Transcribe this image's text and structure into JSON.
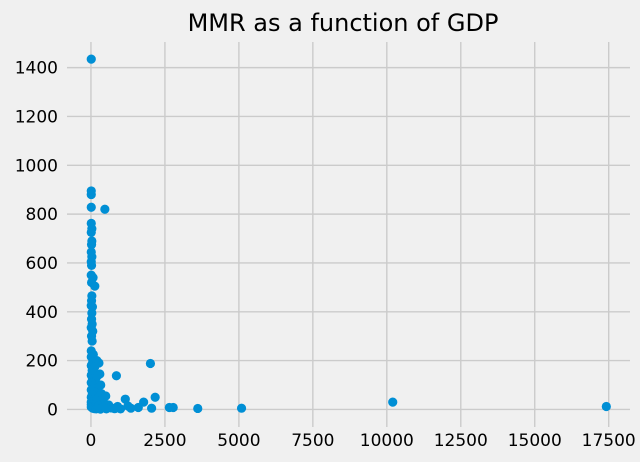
{
  "chart_data": {
    "type": "scatter",
    "title": "MMR as a function of GDP",
    "xlabel": "",
    "ylabel": "",
    "xlim": [
      -810,
      18220
    ],
    "ylim": [
      -72,
      1505
    ],
    "xticks": [
      0,
      2500,
      5000,
      7500,
      10000,
      12500,
      15000,
      17500
    ],
    "yticks": [
      0,
      200,
      400,
      600,
      800,
      1000,
      1200,
      1400
    ],
    "grid": true,
    "colors": {
      "background": "#f0f0f0",
      "grid": "#cbcbcb",
      "marker": "#008fd5"
    },
    "series": [
      {
        "points": [
          [
            10,
            1435
          ],
          [
            10,
            895
          ],
          [
            10,
            880
          ],
          [
            10,
            828
          ],
          [
            470,
            820
          ],
          [
            10,
            762
          ],
          [
            30,
            740
          ],
          [
            10,
            725
          ],
          [
            30,
            690
          ],
          [
            20,
            675
          ],
          [
            10,
            645
          ],
          [
            30,
            625
          ],
          [
            10,
            605
          ],
          [
            20,
            590
          ],
          [
            10,
            550
          ],
          [
            70,
            540
          ],
          [
            20,
            520
          ],
          [
            130,
            505
          ],
          [
            30,
            465
          ],
          [
            20,
            445
          ],
          [
            10,
            425
          ],
          [
            50,
            420
          ],
          [
            30,
            395
          ],
          [
            20,
            370
          ],
          [
            40,
            350
          ],
          [
            10,
            335
          ],
          [
            60,
            320
          ],
          [
            20,
            300
          ],
          [
            40,
            280
          ],
          [
            10,
            240
          ],
          [
            80,
            225
          ],
          [
            10,
            215
          ],
          [
            200,
            200
          ],
          [
            60,
            195
          ],
          [
            270,
            190
          ],
          [
            10,
            180
          ],
          [
            130,
            175
          ],
          [
            40,
            160
          ],
          [
            100,
            150
          ],
          [
            300,
            145
          ],
          [
            10,
            140
          ],
          [
            200,
            135
          ],
          [
            860,
            138
          ],
          [
            50,
            125
          ],
          [
            150,
            118
          ],
          [
            10,
            110
          ],
          [
            330,
            100
          ],
          [
            70,
            95
          ],
          [
            200,
            85
          ],
          [
            10,
            80
          ],
          [
            130,
            70
          ],
          [
            350,
            65
          ],
          [
            40,
            60
          ],
          [
            500,
            55
          ],
          [
            10,
            50
          ],
          [
            220,
            45
          ],
          [
            1160,
            42
          ],
          [
            80,
            40
          ],
          [
            300,
            35
          ],
          [
            2170,
            50
          ],
          [
            10,
            30
          ],
          [
            150,
            28
          ],
          [
            450,
            25
          ],
          [
            1780,
            30
          ],
          [
            10,
            20
          ],
          [
            600,
            18
          ],
          [
            250,
            15
          ],
          [
            900,
            12
          ],
          [
            1250,
            14
          ],
          [
            10,
            10
          ],
          [
            400,
            8
          ],
          [
            700,
            6
          ],
          [
            1350,
            5
          ],
          [
            1600,
            8
          ],
          [
            2010,
            188
          ],
          [
            2050,
            5
          ],
          [
            2650,
            8
          ],
          [
            2780,
            8
          ],
          [
            3610,
            4
          ],
          [
            5090,
            5
          ],
          [
            10200,
            30
          ],
          [
            17420,
            12
          ],
          [
            60,
            5
          ],
          [
            120,
            3
          ],
          [
            180,
            2
          ],
          [
            240,
            4
          ],
          [
            320,
            1
          ],
          [
            520,
            2
          ],
          [
            800,
            3
          ],
          [
            1000,
            2
          ]
        ]
      }
    ]
  }
}
